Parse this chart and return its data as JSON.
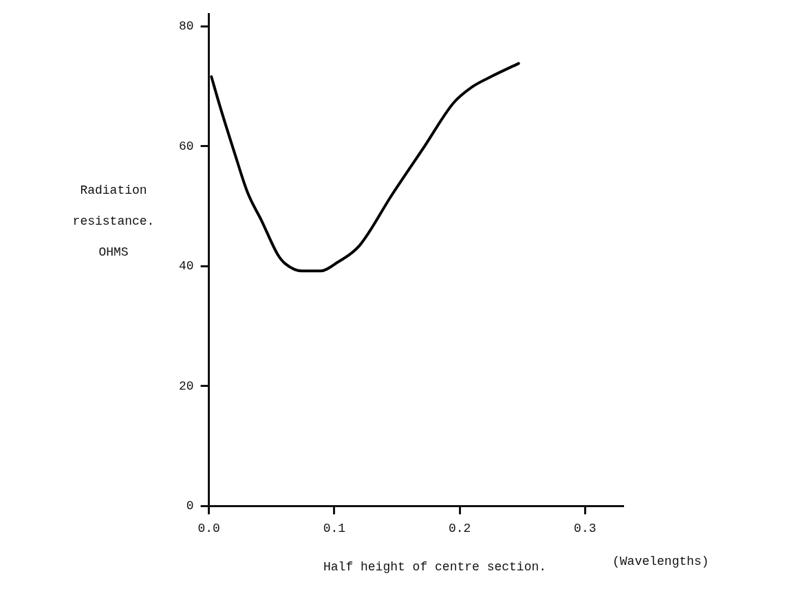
{
  "chart_data": {
    "type": "line",
    "xlabel": "Half height of centre section.",
    "ylabel": "Radiation resistance. OHMS",
    "annotations": [
      "(Wavelengths)"
    ],
    "x": [
      0.002,
      0.0085,
      0.02,
      0.031,
      0.042,
      0.055,
      0.061,
      0.0745,
      0.089,
      0.103,
      0.12,
      0.146,
      0.172,
      0.195,
      0.21,
      0.225,
      0.247
    ],
    "series": [
      {
        "color": "#000000",
        "values": [
          71.6,
          66.9,
          59.2,
          52.2,
          47.6,
          41.9,
          40.4,
          39.2,
          39.2,
          40.7,
          43.4,
          51.9,
          60.0,
          67.2,
          69.9,
          71.6,
          73.8
        ]
      }
    ],
    "xlim": [
      0,
      0.33
    ],
    "ylim": [
      0,
      82
    ],
    "xticks": [
      {
        "value": 0,
        "label": "0.0"
      },
      0.1,
      0.2,
      0.3
    ],
    "yticks": [
      0,
      20,
      40,
      60,
      80
    ],
    "marker": "none"
  }
}
